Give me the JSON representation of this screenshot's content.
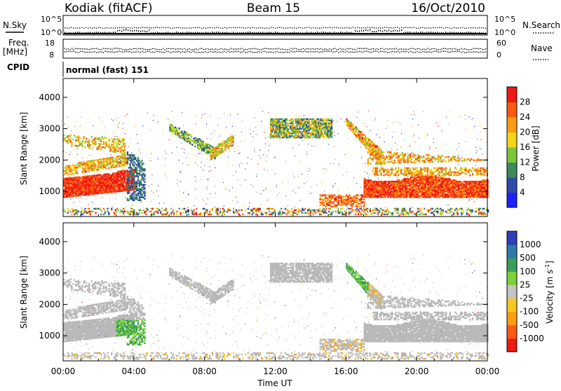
{
  "header": {
    "station": "Kodiak (fitACF)",
    "beam": "Beam 15",
    "date": "16/Oct/2010"
  },
  "aux": {
    "nsky_label": "N.Sky",
    "nsearch_label": "N.Search",
    "n_tick_top": "10^5",
    "n_tick_bottom": "10^0",
    "freq_label": "Freq.",
    "freq_unit": "[MHz]",
    "freq_tick_top": "18",
    "freq_tick_bottom": "8",
    "nave_label": "Nave",
    "nave_tick_top": "60",
    "nave_tick_bottom": "0",
    "cpid_label": "CPID",
    "cpid_value": "normal (fast) 151"
  },
  "colors": {
    "power_scale": [
      "#1e22ff",
      "#2d4ca8",
      "#3d8a5c",
      "#7cc63a",
      "#f2d51a",
      "#fb9d14",
      "#fb5a14",
      "#ee1a14"
    ],
    "velocity_scale": [
      "#2a3fb8",
      "#2e7aa8",
      "#3c9e5a",
      "#7cd03a",
      "#c4c4c4",
      "#f6c820",
      "#fb9d14",
      "#fb5a14",
      "#ee1a14"
    ],
    "ground_scatter": "#b9b9b9"
  },
  "chart_data": [
    {
      "type": "heatmap",
      "name": "power",
      "x_ticks": [
        "00:00",
        "04:00",
        "08:00",
        "12:00",
        "16:00",
        "20:00",
        "00:00"
      ],
      "xlim_hours": [
        0,
        24
      ],
      "ylabel": "Slant Range [km]",
      "y_ticks": [
        1000,
        2000,
        3000,
        4000
      ],
      "ylim": [
        200,
        4600
      ],
      "colorbar_label": "Power [dB]",
      "colorbar_ticks": [
        4,
        8,
        12,
        16,
        20,
        24,
        28
      ],
      "colorbar_range": [
        0,
        32
      ]
    },
    {
      "type": "heatmap",
      "name": "velocity",
      "x_ticks": [
        "00:00",
        "04:00",
        "08:00",
        "12:00",
        "16:00",
        "20:00",
        "00:00"
      ],
      "xlim_hours": [
        0,
        24
      ],
      "ylabel": "Slant Range [km]",
      "y_ticks": [
        1000,
        2000,
        3000,
        4000
      ],
      "ylim": [
        200,
        4600
      ],
      "colorbar_label": "Velocity [m s",
      "colorbar_label_sup": "-1",
      "colorbar_label_end": "]",
      "colorbar_ticks": [
        "1000",
        "500",
        "100",
        "25",
        "-25",
        "-100",
        "-500",
        "-1000"
      ],
      "xlabel": "Time UT"
    }
  ]
}
